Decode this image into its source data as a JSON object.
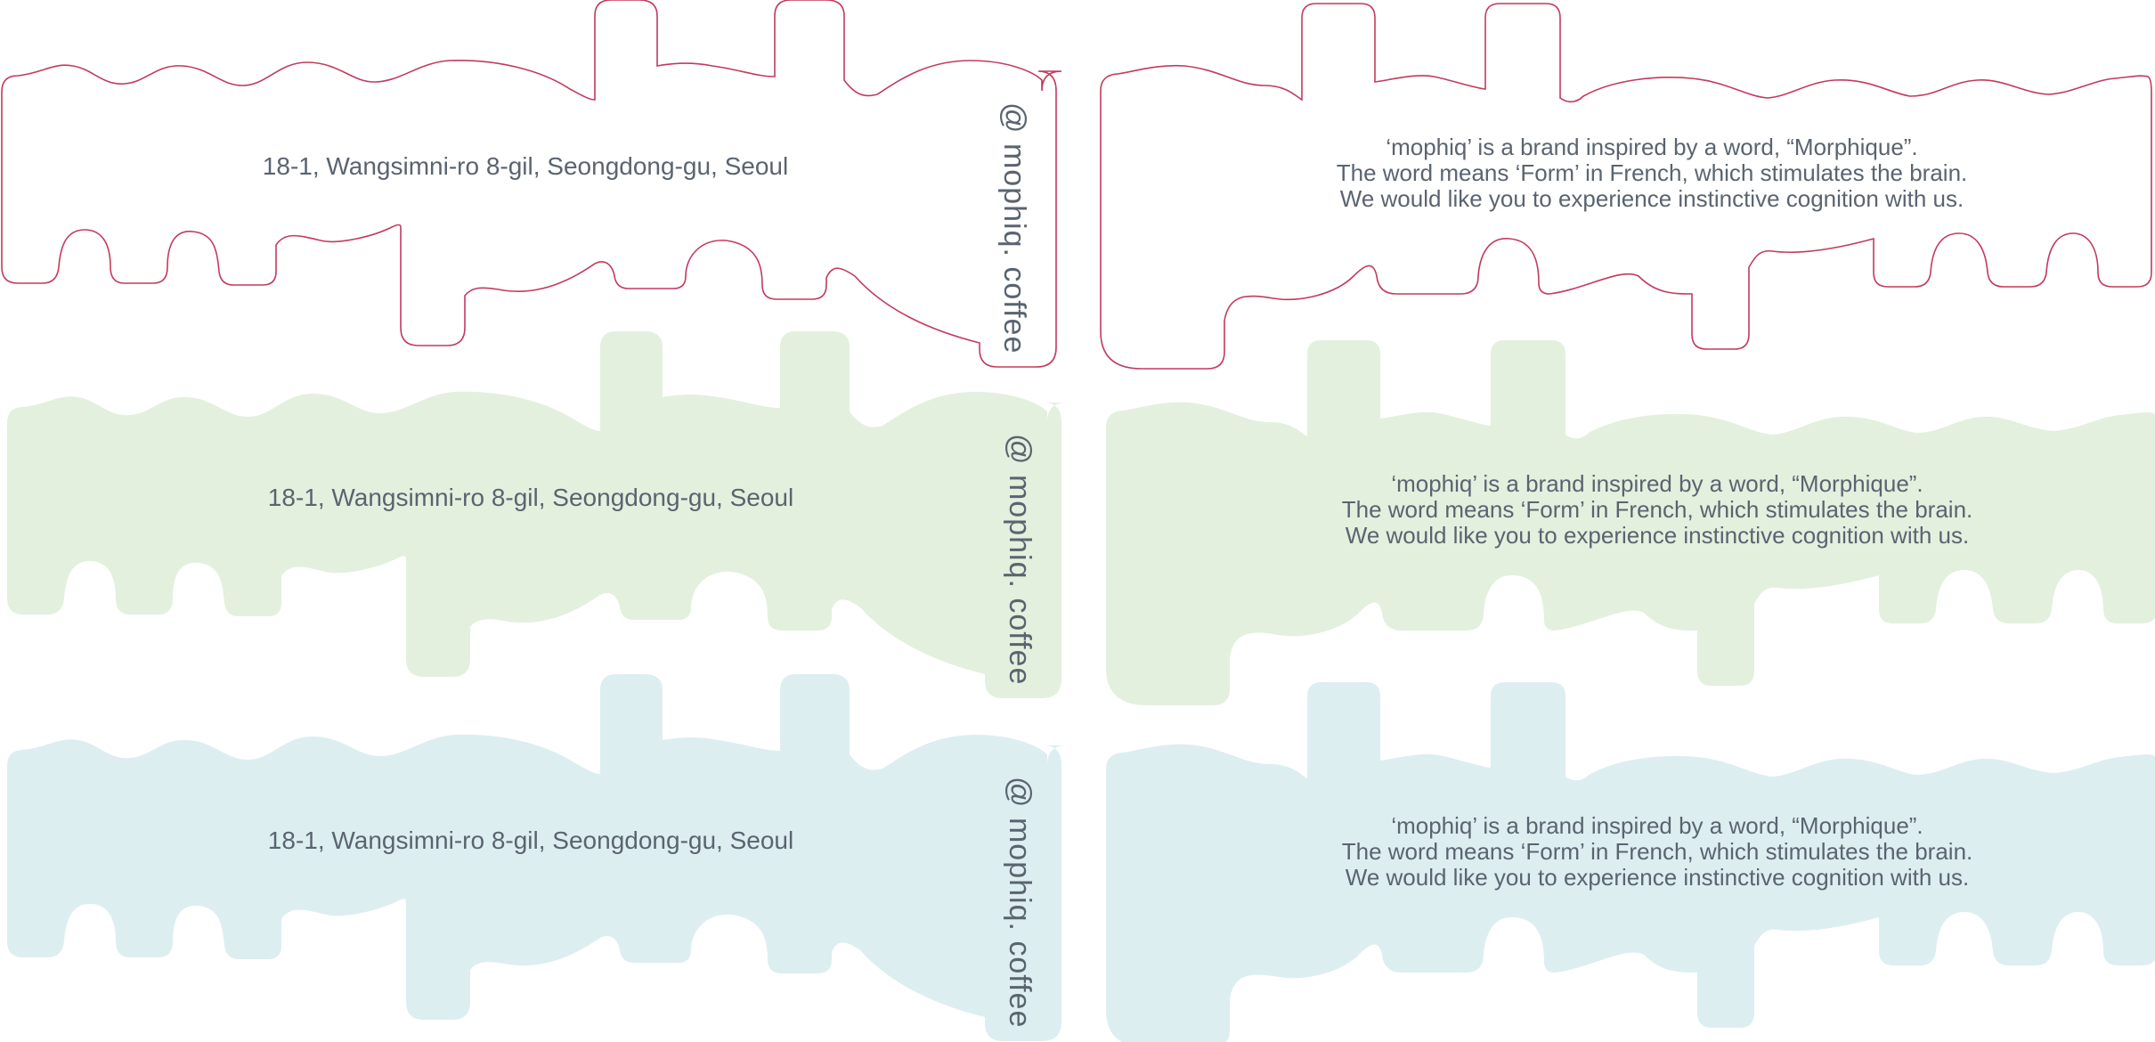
{
  "colors": {
    "outline": "#c23a5e",
    "green": "#e3f0de",
    "blue": "#ddeef1",
    "text": "#5a6470",
    "background": "#ffffff"
  },
  "cards": {
    "address": "18-1, Wangsimni-ro 8-gil, Seongdong-gu, Seoul",
    "handle": "@ mophiq. coffee",
    "description": [
      "‘mophiq’ is a brand inspired by a word, “Morphique”.",
      "The word means ‘Form’ in French, which stimulates the brain.",
      "We would like you to experience instinctive cognition with us."
    ]
  },
  "rows": [
    {
      "style": "outline"
    },
    {
      "style": "green"
    },
    {
      "style": "blue"
    }
  ]
}
